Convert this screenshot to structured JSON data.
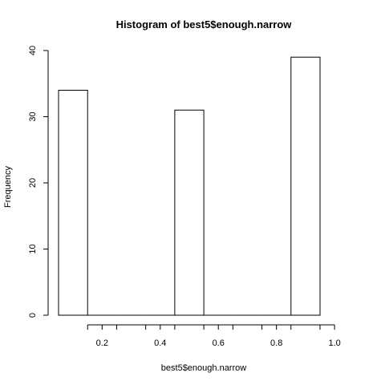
{
  "chart_data": {
    "type": "bar",
    "title": "Histogram of best5$enough.narrow",
    "xlabel": "best5$enough.narrow",
    "ylabel": "Frequency",
    "bins": [
      {
        "start": 0.05,
        "end": 0.15,
        "count": 34
      },
      {
        "start": 0.15,
        "end": 0.25,
        "count": 0
      },
      {
        "start": 0.25,
        "end": 0.35,
        "count": 0
      },
      {
        "start": 0.35,
        "end": 0.45,
        "count": 0
      },
      {
        "start": 0.45,
        "end": 0.55,
        "count": 31
      },
      {
        "start": 0.55,
        "end": 0.65,
        "count": 0
      },
      {
        "start": 0.65,
        "end": 0.75,
        "count": 0
      },
      {
        "start": 0.75,
        "end": 0.85,
        "count": 0
      },
      {
        "start": 0.85,
        "end": 0.95,
        "count": 39
      }
    ],
    "xlim": [
      0.05,
      0.95
    ],
    "ylim": [
      0,
      40
    ],
    "xticks": [
      0.2,
      0.4,
      0.6,
      0.8,
      1.0
    ],
    "xtick_labels": [
      "0.2",
      "0.4",
      "0.6",
      "0.8",
      "1.0"
    ],
    "yticks": [
      0,
      10,
      20,
      30,
      40
    ],
    "ytick_labels": [
      "0",
      "10",
      "20",
      "30",
      "40"
    ],
    "x_axis_range": [
      0.15,
      1.0
    ],
    "grid": false,
    "bar_fill": "#ffffff",
    "bar_stroke": "#000000"
  }
}
